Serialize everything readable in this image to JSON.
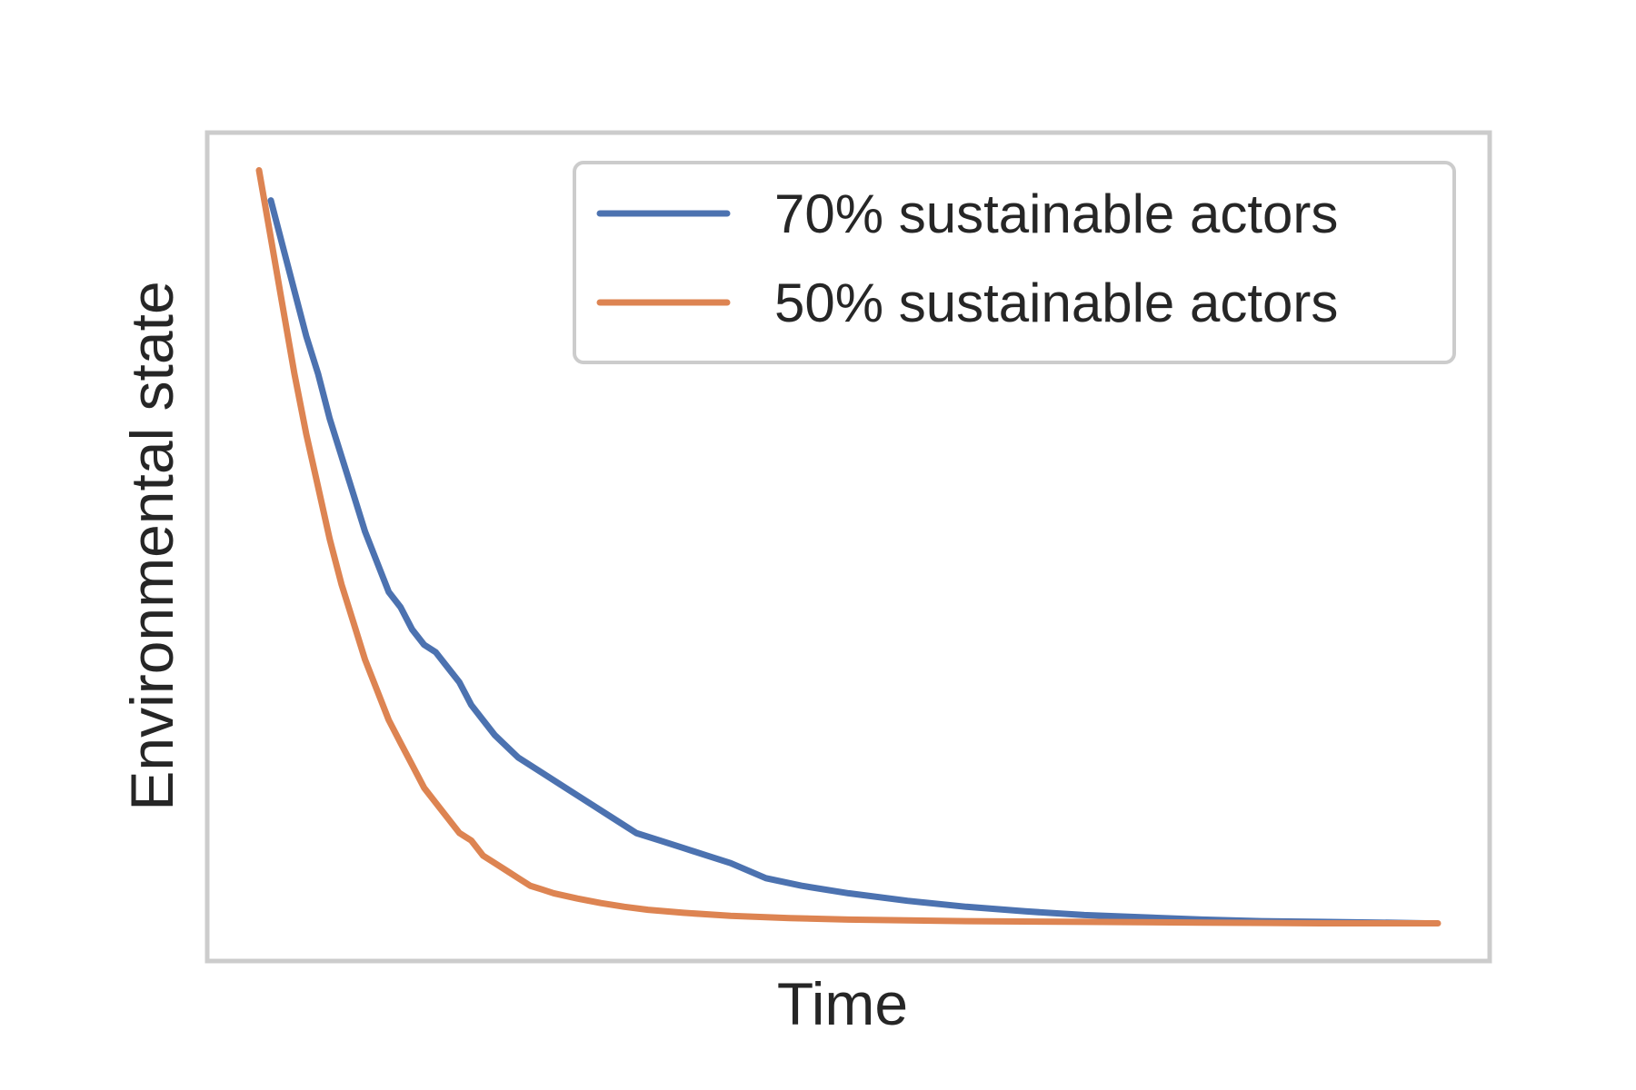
{
  "chart_data": {
    "type": "line",
    "title": "",
    "xlabel": "Time",
    "ylabel": "Environmental state",
    "xticks_shown": false,
    "yticks_shown": false,
    "grid": false,
    "legend_position": "upper-right",
    "x_range": [
      0,
      100
    ],
    "y_range": [
      -0.05,
      1.05
    ],
    "frame_color": "#cccccc",
    "series": [
      {
        "name": "70% sustainable actors",
        "color": "#4c72b0",
        "x": [
          1,
          2,
          3,
          4,
          5,
          6,
          7,
          8,
          9,
          10,
          11,
          12,
          13,
          14,
          15,
          16,
          17,
          18,
          19,
          20,
          22,
          24,
          26,
          28,
          30,
          32,
          34,
          36,
          38,
          40,
          43,
          46,
          50,
          55,
          60,
          65,
          70,
          75,
          80,
          85,
          90,
          95,
          99
        ],
        "y": [
          0.96,
          0.9,
          0.84,
          0.78,
          0.73,
          0.67,
          0.62,
          0.57,
          0.52,
          0.48,
          0.44,
          0.42,
          0.39,
          0.37,
          0.36,
          0.34,
          0.32,
          0.29,
          0.27,
          0.25,
          0.22,
          0.2,
          0.18,
          0.16,
          0.14,
          0.12,
          0.11,
          0.1,
          0.09,
          0.08,
          0.06,
          0.05,
          0.04,
          0.03,
          0.022,
          0.016,
          0.011,
          0.008,
          0.005,
          0.003,
          0.002,
          0.001,
          0.0
        ]
      },
      {
        "name": "50% sustainable actors",
        "color": "#dd8452",
        "x": [
          0,
          1,
          2,
          3,
          4,
          5,
          6,
          7,
          8,
          9,
          10,
          11,
          12,
          13,
          14,
          15,
          16,
          17,
          18,
          19,
          20,
          21,
          22,
          23,
          24,
          25,
          27,
          29,
          31,
          33,
          36,
          40,
          45,
          50,
          55,
          60,
          70,
          80,
          90,
          100
        ],
        "y": [
          1.0,
          0.91,
          0.82,
          0.73,
          0.65,
          0.58,
          0.51,
          0.45,
          0.4,
          0.35,
          0.31,
          0.27,
          0.24,
          0.21,
          0.18,
          0.16,
          0.14,
          0.12,
          0.11,
          0.09,
          0.08,
          0.07,
          0.06,
          0.05,
          0.045,
          0.04,
          0.033,
          0.027,
          0.022,
          0.018,
          0.014,
          0.01,
          0.007,
          0.005,
          0.004,
          0.003,
          0.002,
          0.001,
          0.0,
          0.0
        ]
      }
    ]
  }
}
